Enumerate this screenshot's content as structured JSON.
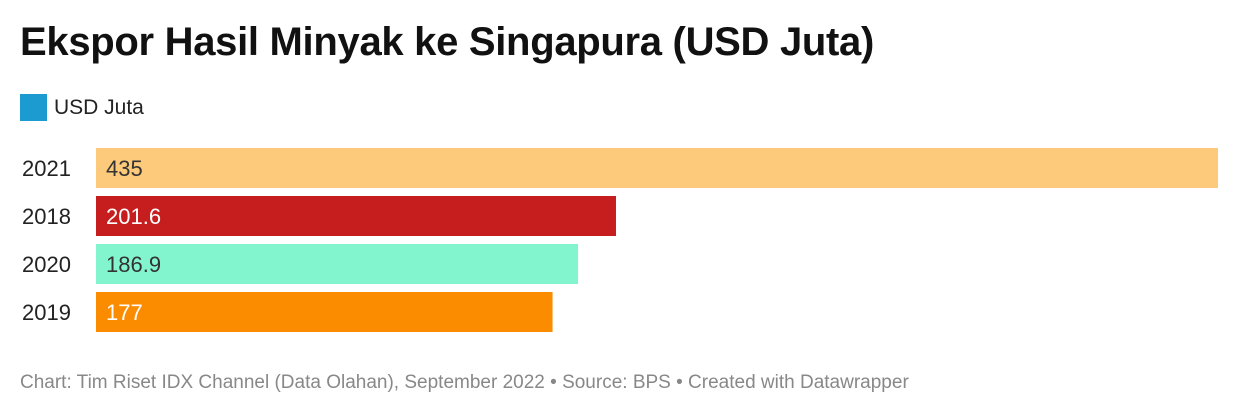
{
  "title": "Ekspor Hasil Minyak ke Singapura (USD Juta)",
  "legend": {
    "label": "USD Juta",
    "color": "#1b9bd0"
  },
  "footer": "Chart: Tim Riset IDX Channel (Data Olahan), September 2022 • Source: BPS • Created with Datawrapper",
  "chart_data": {
    "type": "bar",
    "orientation": "horizontal",
    "categories": [
      "2021",
      "2018",
      "2020",
      "2019"
    ],
    "values": [
      435,
      201.6,
      186.9,
      177
    ],
    "value_labels": [
      "435",
      "201.6",
      "186.9",
      "177"
    ],
    "colors": [
      "#fdc97a",
      "#c61e1e",
      "#82f5cf",
      "#fb8c00"
    ],
    "label_colors": [
      "#333333",
      "#ffffff",
      "#333333",
      "#ffffff"
    ],
    "xlim": [
      0,
      435
    ],
    "series": [
      {
        "name": "USD Juta",
        "values": [
          435,
          201.6,
          186.9,
          177
        ]
      }
    ],
    "grid": false,
    "legend_position": "top-left"
  }
}
